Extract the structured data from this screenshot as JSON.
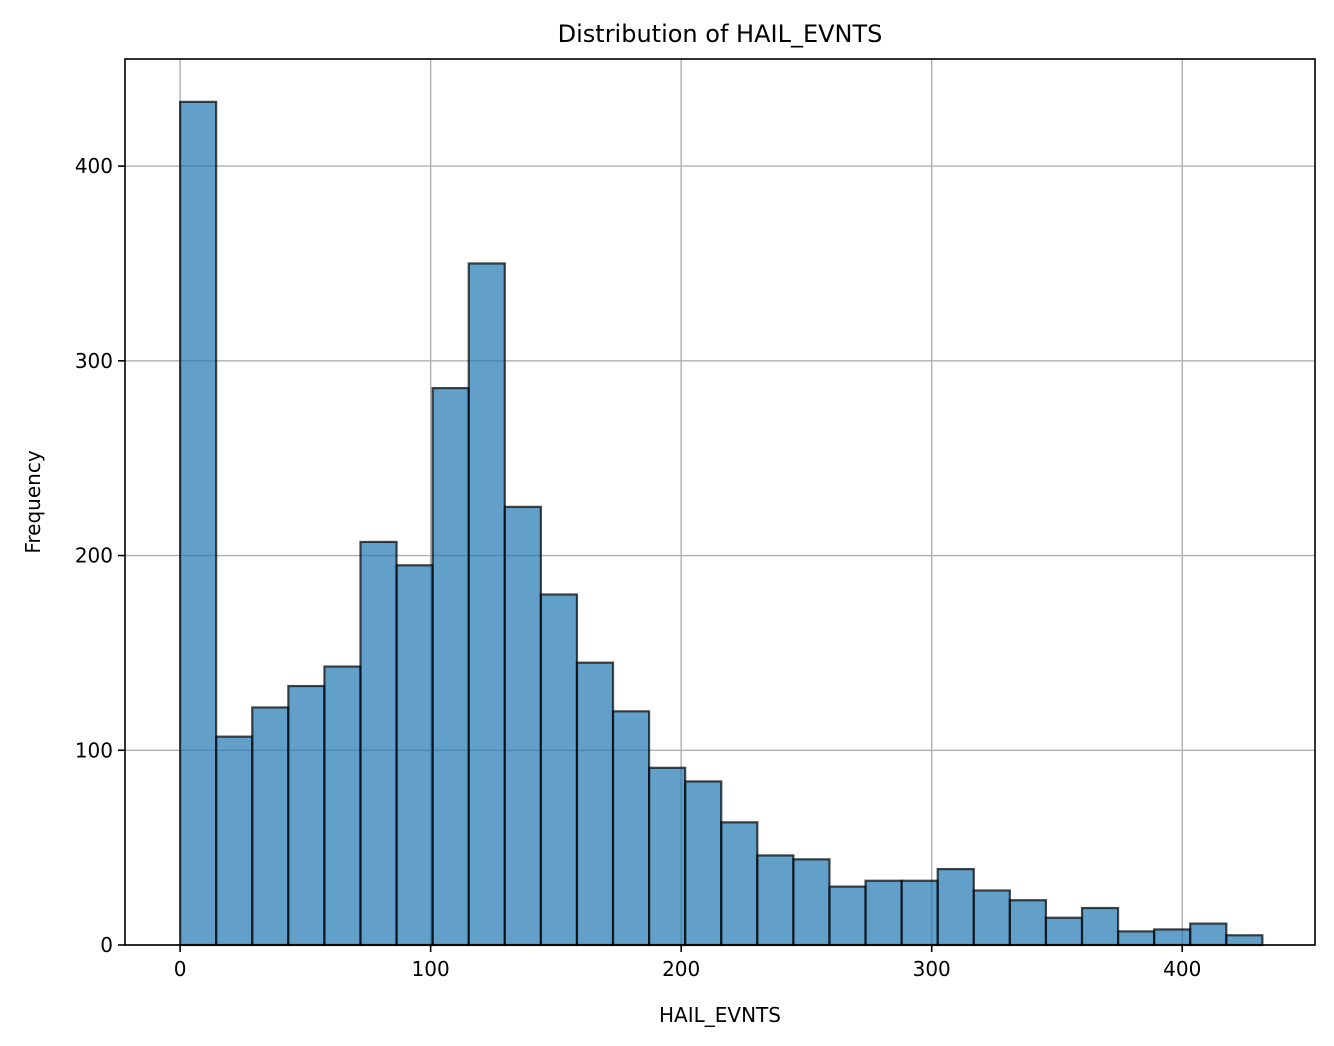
{
  "chart_data": {
    "type": "bar",
    "title": "Distribution of HAIL_EVNTS",
    "xlabel": "HAIL_EVNTS",
    "ylabel": "Frequency",
    "xlim": [
      -22,
      453
    ],
    "ylim": [
      0,
      455
    ],
    "xticks": [
      0,
      100,
      200,
      300,
      400
    ],
    "yticks": [
      0,
      100,
      200,
      300,
      400
    ],
    "grid": true,
    "bar_color": "#1f77b4",
    "edge_color": "#000000",
    "bins": {
      "start": 0,
      "width": 14.4,
      "counts": [
        433,
        107,
        122,
        133,
        143,
        207,
        195,
        286,
        350,
        225,
        180,
        145,
        120,
        91,
        84,
        63,
        46,
        44,
        30,
        33,
        33,
        39,
        28,
        23,
        14,
        19,
        7,
        8,
        11,
        5
      ]
    }
  }
}
